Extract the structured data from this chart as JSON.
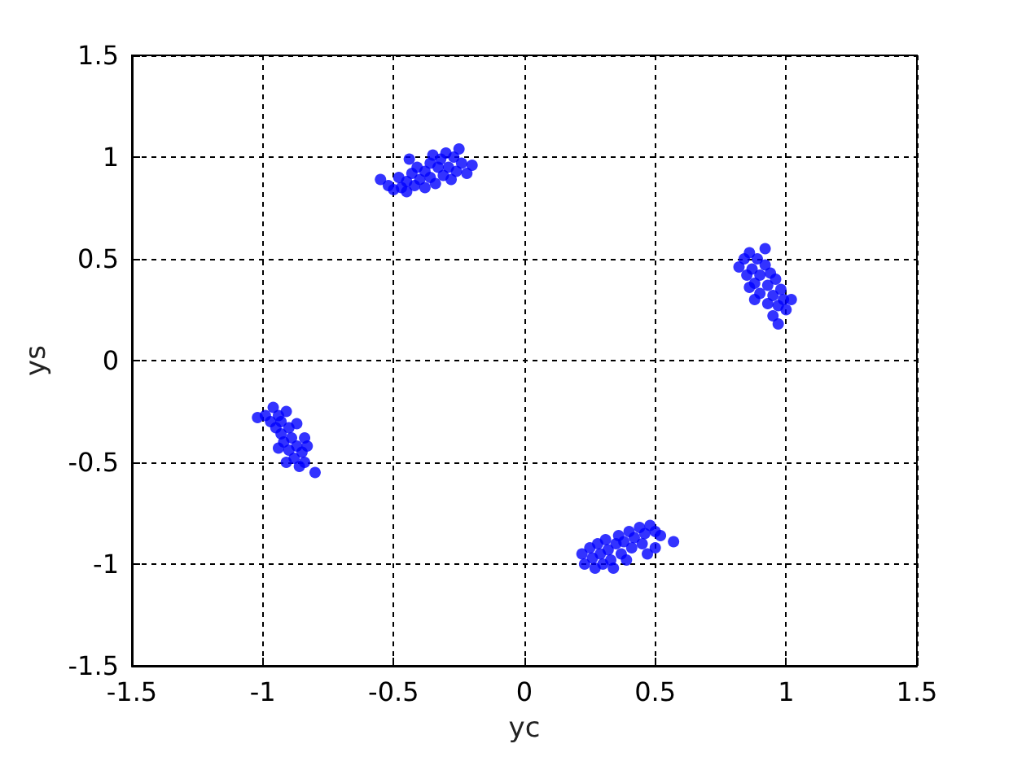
{
  "chart_data": {
    "type": "scatter",
    "xlabel": "yc",
    "ylabel": "ys",
    "xlim": [
      -1.5,
      1.5
    ],
    "ylim": [
      -1.5,
      1.5
    ],
    "xticks": [
      -1.5,
      -1,
      -0.5,
      0,
      0.5,
      1,
      1.5
    ],
    "yticks": [
      -1.5,
      -1,
      -0.5,
      0,
      0.5,
      1,
      1.5
    ],
    "grid": true,
    "marker": "circle",
    "series": [
      {
        "color": "#0000ff",
        "x": [
          -0.55,
          -0.52,
          -0.5,
          -0.48,
          -0.47,
          -0.45,
          -0.45,
          -0.43,
          -0.42,
          -0.41,
          -0.4,
          -0.38,
          -0.38,
          -0.36,
          -0.36,
          -0.34,
          -0.33,
          -0.32,
          -0.31,
          -0.3,
          -0.29,
          -0.28,
          -0.27,
          -0.26,
          -0.25,
          -0.24,
          -0.22,
          -0.2,
          -0.44,
          -0.35,
          -1.02,
          -0.99,
          -0.97,
          -0.96,
          -0.95,
          -0.94,
          -0.93,
          -0.93,
          -0.92,
          -0.91,
          -0.9,
          -0.9,
          -0.89,
          -0.88,
          -0.87,
          -0.87,
          -0.86,
          -0.85,
          -0.84,
          -0.84,
          -0.83,
          -0.8,
          -0.94,
          -0.91,
          0.22,
          0.23,
          0.25,
          0.26,
          0.27,
          0.28,
          0.29,
          0.3,
          0.31,
          0.32,
          0.33,
          0.34,
          0.35,
          0.36,
          0.37,
          0.38,
          0.39,
          0.4,
          0.41,
          0.42,
          0.44,
          0.45,
          0.46,
          0.47,
          0.48,
          0.5,
          0.5,
          0.52,
          0.57,
          0.82,
          0.84,
          0.85,
          0.86,
          0.87,
          0.88,
          0.89,
          0.9,
          0.9,
          0.92,
          0.92,
          0.93,
          0.93,
          0.94,
          0.95,
          0.95,
          0.96,
          0.97,
          0.97,
          0.98,
          0.99,
          1.0,
          1.02,
          0.88,
          0.86
        ],
        "values": [
          0.89,
          0.86,
          0.84,
          0.9,
          0.85,
          0.88,
          0.83,
          0.92,
          0.86,
          0.95,
          0.89,
          0.85,
          0.93,
          0.97,
          0.9,
          0.87,
          0.95,
          0.99,
          0.91,
          1.02,
          0.95,
          0.89,
          1.0,
          0.93,
          1.04,
          0.97,
          0.92,
          0.96,
          0.99,
          1.01,
          -0.28,
          -0.27,
          -0.3,
          -0.23,
          -0.33,
          -0.27,
          -0.36,
          -0.3,
          -0.4,
          -0.25,
          -0.33,
          -0.44,
          -0.38,
          -0.48,
          -0.31,
          -0.42,
          -0.52,
          -0.45,
          -0.38,
          -0.5,
          -0.42,
          -0.55,
          -0.43,
          -0.5,
          -0.95,
          -1.0,
          -0.92,
          -0.97,
          -1.02,
          -0.9,
          -0.95,
          -1.0,
          -0.88,
          -0.93,
          -0.98,
          -1.02,
          -0.9,
          -0.86,
          -0.95,
          -0.89,
          -0.98,
          -0.84,
          -0.92,
          -0.87,
          -0.82,
          -0.9,
          -0.85,
          -0.95,
          -0.81,
          -0.84,
          -0.92,
          -0.86,
          -0.89,
          0.46,
          0.5,
          0.42,
          0.53,
          0.45,
          0.38,
          0.5,
          0.42,
          0.33,
          0.55,
          0.47,
          0.37,
          0.28,
          0.43,
          0.32,
          0.22,
          0.4,
          0.27,
          0.18,
          0.35,
          0.3,
          0.25,
          0.3,
          0.3,
          0.36
        ]
      }
    ]
  }
}
